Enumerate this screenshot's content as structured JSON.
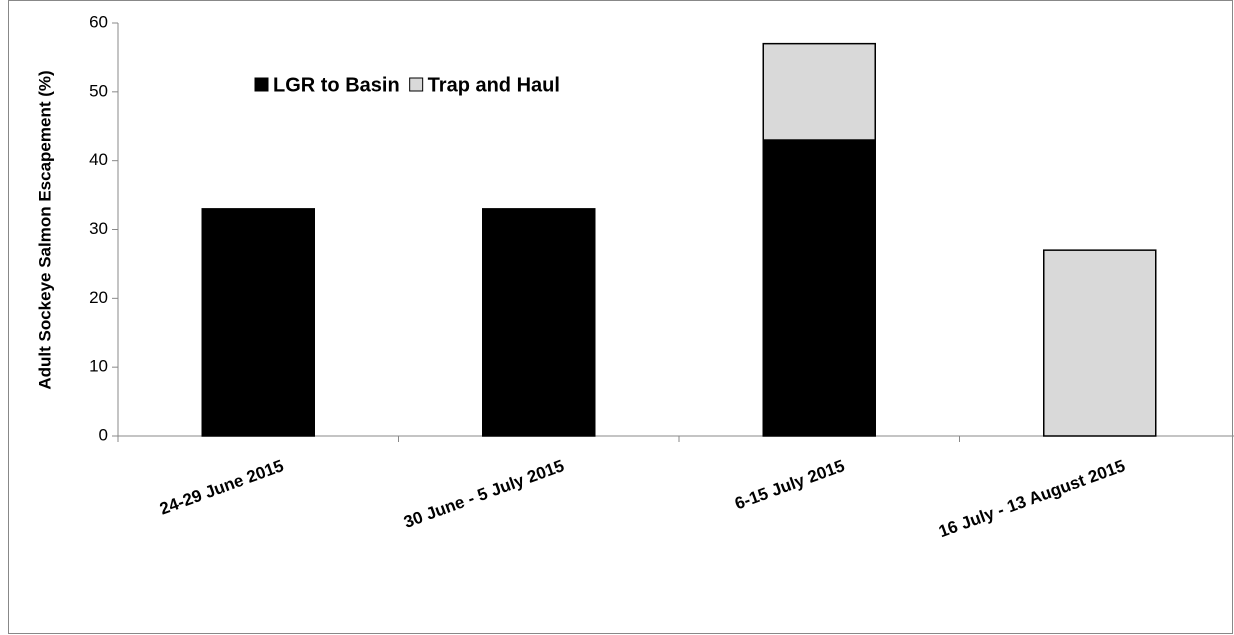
{
  "chart_data": {
    "type": "stacked_bar",
    "y_label": "Adult Sockeye Salmon Escapement (%)",
    "categories": [
      "24-29 June 2015",
      "30 June - 5 July 2015",
      "6-15 July 2015",
      "16 July - 13 August 2015"
    ],
    "series": [
      {
        "name": "LGR to Basin",
        "color": "#000000",
        "values": [
          33,
          33,
          43,
          0
        ]
      },
      {
        "name": "Trap and Haul",
        "color": "#d9d9d9",
        "values": [
          0,
          0,
          14,
          27
        ]
      }
    ],
    "ylim": [
      0,
      60
    ],
    "yticks": [
      0,
      10,
      20,
      30,
      40,
      50,
      60
    ],
    "grid": false,
    "legend": "top-left"
  }
}
